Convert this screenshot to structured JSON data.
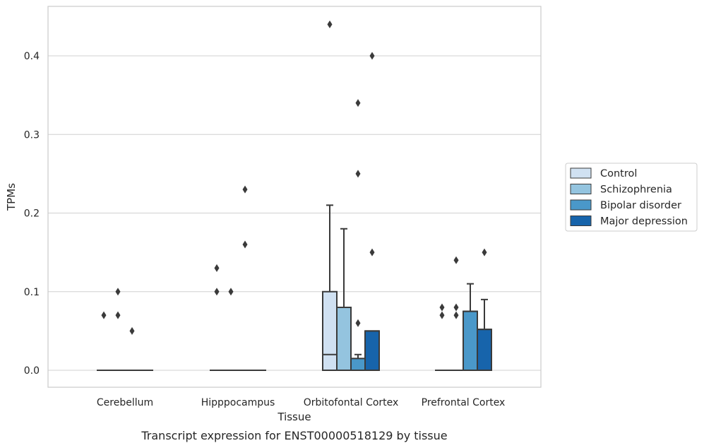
{
  "chart_data": {
    "type": "box",
    "xlabel": "Tissue",
    "ylabel": "TPMs",
    "caption": "Transcript expression for ENST00000518129 by tissue",
    "categories": [
      "Cerebellum",
      "Hipppocampus",
      "Orbitofontal Cortex",
      "Prefrontal Cortex"
    ],
    "ylim": [
      -0.021,
      0.463
    ],
    "yticks": [
      0.0,
      0.1,
      0.2,
      0.3,
      0.4
    ],
    "ytick_labels": [
      "0.0",
      "0.1",
      "0.2",
      "0.3",
      "0.4"
    ],
    "grid": "horizontal",
    "legend_position": "right",
    "series": [
      {
        "name": "Control",
        "color": "#d0e1f2",
        "boxes": [
          {
            "q1": 0,
            "median": 0,
            "q3": 0,
            "whisker_low": 0,
            "whisker_high": 0,
            "outliers": [
              0.07
            ]
          },
          {
            "q1": 0,
            "median": 0,
            "q3": 0,
            "whisker_low": 0,
            "whisker_high": 0,
            "outliers": [
              0.1,
              0.13
            ]
          },
          {
            "q1": 0,
            "median": 0.02,
            "q3": 0.1,
            "whisker_low": 0,
            "whisker_high": 0.21,
            "outliers": [
              0.44
            ]
          },
          {
            "q1": 0,
            "median": 0,
            "q3": 0,
            "whisker_low": 0,
            "whisker_high": 0,
            "outliers": [
              0.07,
              0.08
            ]
          }
        ]
      },
      {
        "name": "Schizophrenia",
        "color": "#94c4df",
        "boxes": [
          {
            "q1": 0,
            "median": 0,
            "q3": 0,
            "whisker_low": 0,
            "whisker_high": 0,
            "outliers": [
              0.07,
              0.1
            ]
          },
          {
            "q1": 0,
            "median": 0,
            "q3": 0,
            "whisker_low": 0,
            "whisker_high": 0,
            "outliers": [
              0.1
            ]
          },
          {
            "q1": 0,
            "median": 0,
            "q3": 0.08,
            "whisker_low": 0,
            "whisker_high": 0.18,
            "outliers": []
          },
          {
            "q1": 0,
            "median": 0,
            "q3": 0,
            "whisker_low": 0,
            "whisker_high": 0,
            "outliers": [
              0.07,
              0.08,
              0.14
            ]
          }
        ]
      },
      {
        "name": "Bipolar disorder",
        "color": "#4a98c9",
        "boxes": [
          {
            "q1": 0,
            "median": 0,
            "q3": 0,
            "whisker_low": 0,
            "whisker_high": 0,
            "outliers": [
              0.05
            ]
          },
          {
            "q1": 0,
            "median": 0,
            "q3": 0,
            "whisker_low": 0,
            "whisker_high": 0,
            "outliers": [
              0.16,
              0.23
            ]
          },
          {
            "q1": 0,
            "median": 0,
            "q3": 0.015,
            "whisker_low": 0,
            "whisker_high": 0.02,
            "outliers": [
              0.06,
              0.25,
              0.34
            ]
          },
          {
            "q1": 0,
            "median": 0.075,
            "q3": 0.075,
            "whisker_low": 0,
            "whisker_high": 0.11,
            "outliers": []
          }
        ]
      },
      {
        "name": "Major depression",
        "color": "#1764ab",
        "boxes": [
          {
            "q1": 0,
            "median": 0,
            "q3": 0,
            "whisker_low": 0,
            "whisker_high": 0,
            "outliers": []
          },
          {
            "q1": 0,
            "median": 0,
            "q3": 0,
            "whisker_low": 0,
            "whisker_high": 0,
            "outliers": []
          },
          {
            "q1": 0,
            "median": 0.05,
            "q3": 0.05,
            "whisker_low": 0,
            "whisker_high": 0.05,
            "outliers": [
              0.15,
              0.4
            ]
          },
          {
            "q1": 0,
            "median": 0.052,
            "q3": 0.052,
            "whisker_low": 0,
            "whisker_high": 0.09,
            "outliers": [
              0.15
            ]
          }
        ]
      }
    ]
  }
}
